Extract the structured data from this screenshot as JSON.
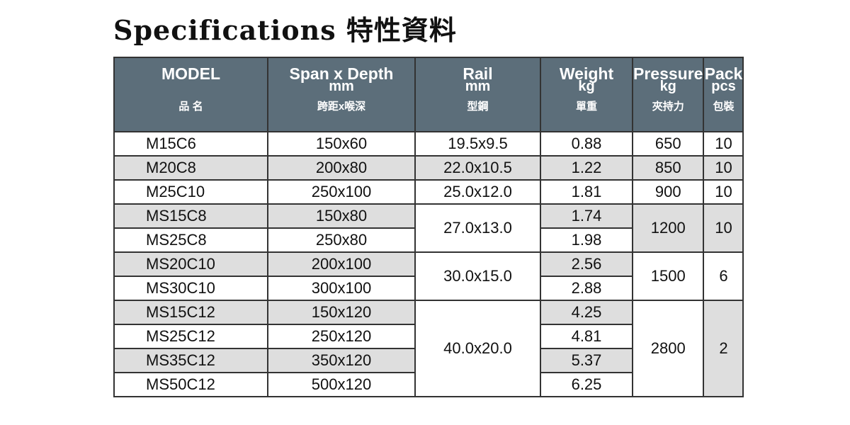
{
  "title": "Specifications 特性資料",
  "headers": [
    {
      "en": "MODEL",
      "en2": "",
      "zh": "品 名"
    },
    {
      "en": "Span x Depth",
      "en2": "mm",
      "zh": "跨距x喉深"
    },
    {
      "en": "Rail",
      "en2": "mm",
      "zh": "型鋼"
    },
    {
      "en": "Weight",
      "en2": "kg",
      "zh": "單重"
    },
    {
      "en": "Pressure",
      "en2": "kg",
      "zh": "夾持力"
    },
    {
      "en": "Pack",
      "en2": "pcs",
      "zh": "包裝"
    }
  ],
  "rows": [
    {
      "model": "M15C6",
      "span": "150x60",
      "rail": "19.5x9.5",
      "weight": "0.88",
      "pressure": "650",
      "pack": "10"
    },
    {
      "model": "M20C8",
      "span": "200x80",
      "rail": "22.0x10.5",
      "weight": "1.22",
      "pressure": "850",
      "pack": "10"
    },
    {
      "model": "M25C10",
      "span": "250x100",
      "rail": "25.0x12.0",
      "weight": "1.81",
      "pressure": "900",
      "pack": "10"
    },
    {
      "model": "MS15C8",
      "span": "150x80",
      "rail": "27.0x13.0",
      "weight": "1.74",
      "pressure": "1200",
      "pack": "10"
    },
    {
      "model": "MS25C8",
      "span": "250x80",
      "weight": "1.98"
    },
    {
      "model": "MS20C10",
      "span": "200x100",
      "rail": "30.0x15.0",
      "weight": "2.56",
      "pressure": "1500",
      "pack": "6"
    },
    {
      "model": "MS30C10",
      "span": "300x100",
      "weight": "2.88"
    },
    {
      "model": "MS15C12",
      "span": "150x120",
      "rail": "40.0x20.0",
      "weight": "4.25",
      "pressure": "2800",
      "pack": "2"
    },
    {
      "model": "MS25C12",
      "span": "250x120",
      "weight": "4.81"
    },
    {
      "model": "MS35C12",
      "span": "350x120",
      "weight": "5.37"
    },
    {
      "model": "MS50C12",
      "span": "500x120",
      "weight": "6.25"
    }
  ],
  "colors": {
    "header_bg": "#5c6e7a",
    "shaded_row": "#dedede"
  }
}
